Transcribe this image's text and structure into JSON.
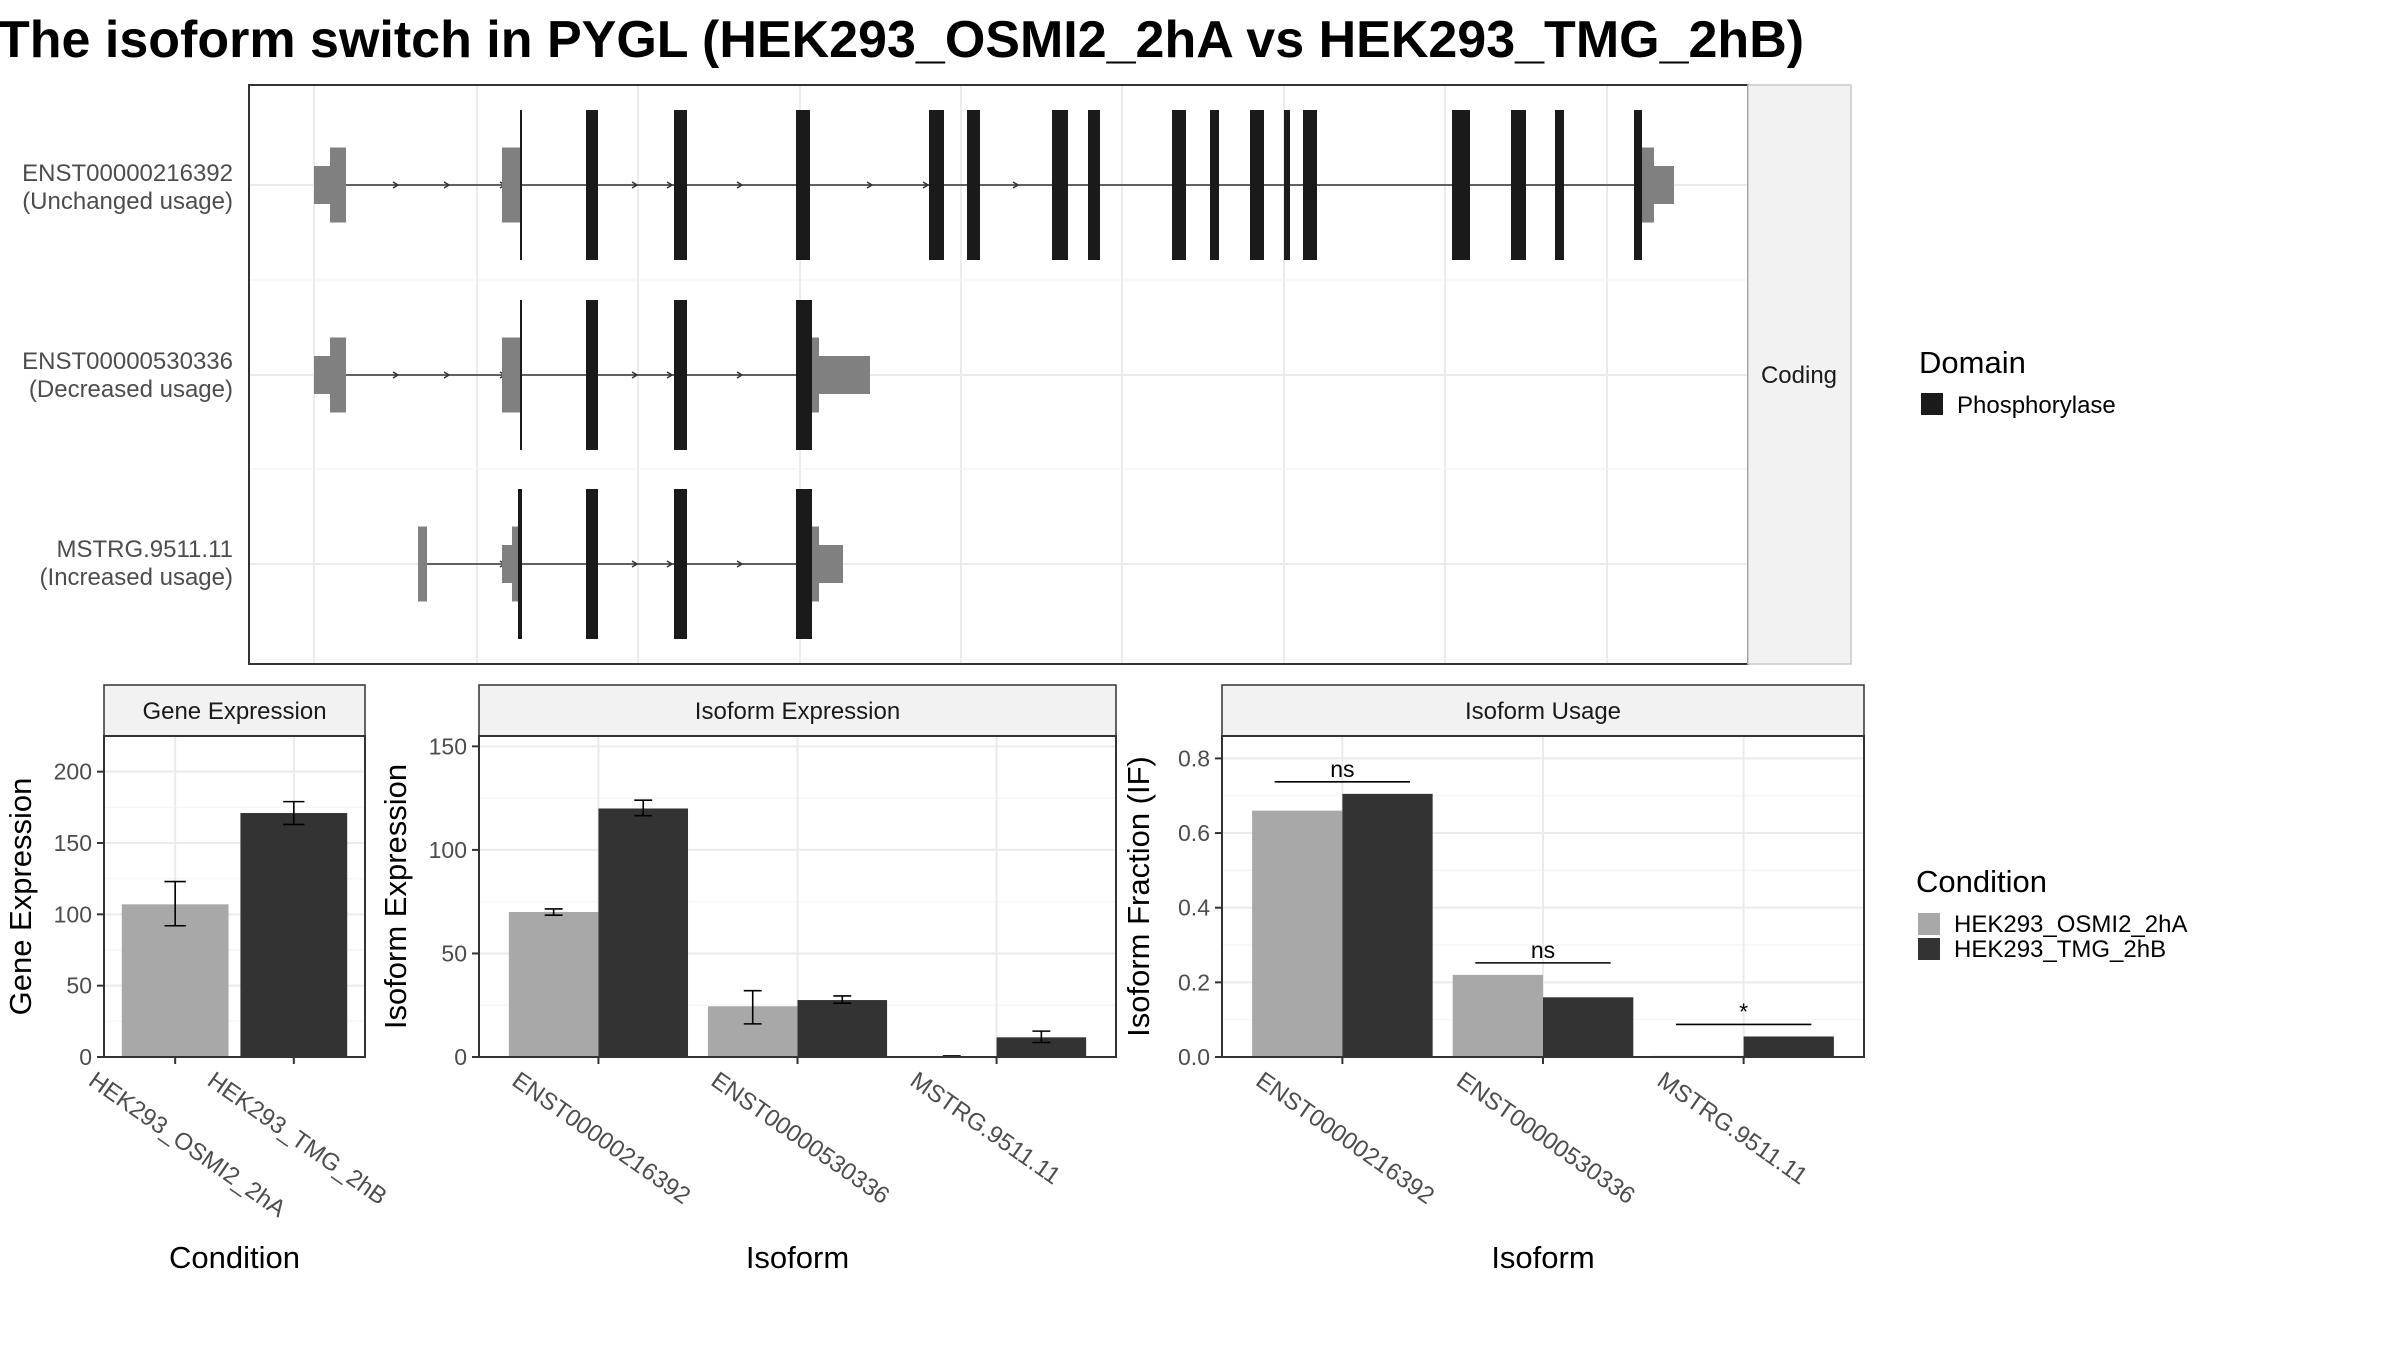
{
  "title": "The isoform switch in PYGL (HEK293_OSMI2_2hA vs HEK293_TMG_2hB)",
  "colors": {
    "condition_a": "#a8a8a8",
    "condition_b": "#333333",
    "domain": "#1a1a1a",
    "utr": "#808080",
    "intron": "#333333",
    "panel_border": "#333333",
    "strip_fill": "#f2f2f2",
    "grid": "#ebebeb"
  },
  "structure": {
    "facet_label": "Coding",
    "isoforms": [
      {
        "id": "ENST00000216392",
        "usage_label": "(Unchanged usage)"
      },
      {
        "id": "ENST00000530336",
        "usage_label": "(Decreased usage)"
      },
      {
        "id": "MSTRG.9511.11",
        "usage_label": "(Increased usage)"
      }
    ]
  },
  "legends": {
    "domain": {
      "title": "Domain",
      "items": [
        "Phosphorylase"
      ]
    },
    "condition": {
      "title": "Condition",
      "items": [
        "HEK293_OSMI2_2hA",
        "HEK293_TMG_2hB"
      ]
    }
  },
  "chart_data": [
    {
      "type": "bar",
      "title": "Gene Expression",
      "xlabel": "Condition",
      "ylabel": "Gene Expression",
      "ylim": [
        0,
        225
      ],
      "yticks": [
        0,
        50,
        100,
        150,
        200
      ],
      "categories": [
        "HEK293_OSMI2_2hA",
        "HEK293_TMG_2hB"
      ],
      "values": [
        107,
        171
      ],
      "error": [
        [
          92,
          123
        ],
        [
          163,
          179
        ]
      ]
    },
    {
      "type": "bar",
      "title": "Isoform Expression",
      "xlabel": "Isoform",
      "ylabel": "Isoform Expression",
      "ylim": [
        0,
        155
      ],
      "yticks": [
        0,
        50,
        100,
        150
      ],
      "categories": [
        "ENST00000216392",
        "ENST00000530336",
        "MSTRG.9511.11"
      ],
      "series": [
        {
          "name": "HEK293_OSMI2_2hA",
          "values": [
            70,
            24.5,
            0.2
          ],
          "error": [
            [
              68.5,
              71.5
            ],
            [
              16,
              32
            ],
            [
              0,
              0.5
            ]
          ]
        },
        {
          "name": "HEK293_TMG_2hB",
          "values": [
            120,
            27.5,
            9.5
          ],
          "error": [
            [
              116.5,
              124
            ],
            [
              26,
              29.5
            ],
            [
              7,
              12.5
            ]
          ]
        }
      ]
    },
    {
      "type": "bar",
      "title": "Isoform Usage",
      "xlabel": "Isoform",
      "ylabel": "Isoform Fraction (IF)",
      "ylim": [
        0,
        0.86
      ],
      "yticks": [
        "0.0",
        "0.2",
        "0.4",
        "0.6",
        "0.8"
      ],
      "categories": [
        "ENST00000216392",
        "ENST00000530336",
        "MSTRG.9511.11"
      ],
      "series": [
        {
          "name": "HEK293_OSMI2_2hA",
          "values": [
            0.66,
            0.22,
            0.003
          ]
        },
        {
          "name": "HEK293_TMG_2hB",
          "values": [
            0.705,
            0.16,
            0.055
          ]
        }
      ],
      "significance": [
        "ns",
        "ns",
        "*"
      ]
    }
  ]
}
